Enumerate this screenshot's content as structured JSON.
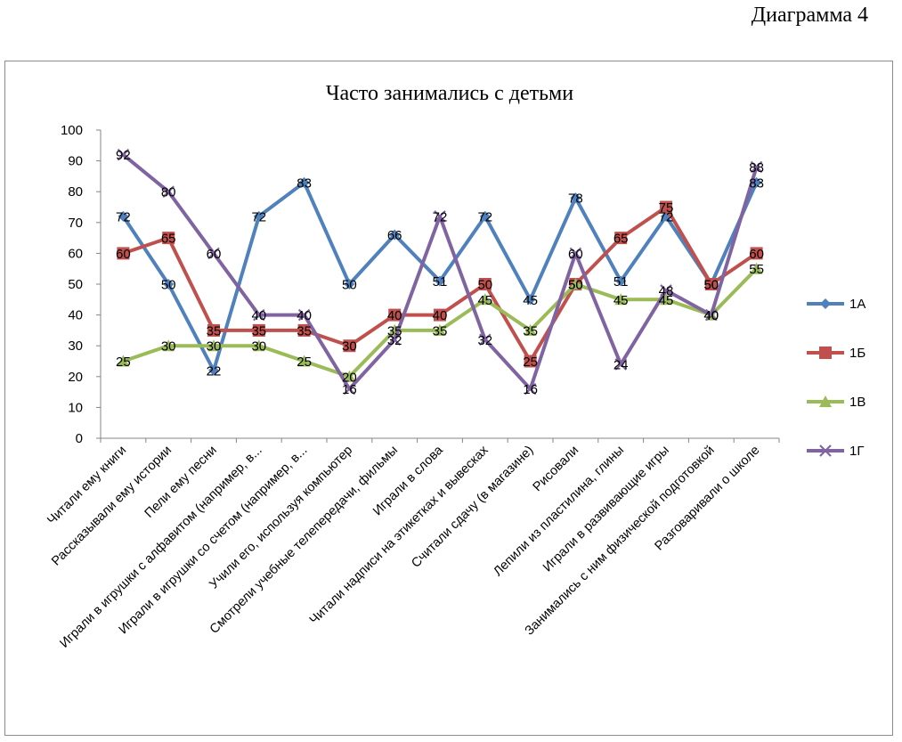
{
  "page": {
    "diagram_label": "Диаграмма 4"
  },
  "chart_data": {
    "type": "line",
    "title": "Часто занимались с детьми",
    "xlabel": "",
    "ylabel": "",
    "ylim": [
      0,
      100
    ],
    "yticks": [
      0,
      10,
      20,
      30,
      40,
      50,
      60,
      70,
      80,
      90,
      100
    ],
    "grid": false,
    "legend_position": "right",
    "categories": [
      "Читали ему книги",
      "Рассказывали ему истории",
      "Пели ему песни",
      "Играли в игрушки с алфавитом (например, в...",
      "Играли в игрушки со счетом (например, в...",
      "Учили его, используя компьютер",
      "Смотрели учебные телепередачи, фильмы",
      "Играли в слова",
      "Читали надписи на этикетках и вывесках",
      "Считали сдачу (в магазине)",
      "Рисовали",
      "Лепили из пластилина, глины",
      "Играли в развивающие игры",
      "Занимались с ним физической подготовкой",
      "Разговаривали о школе"
    ],
    "series": [
      {
        "name": "1А",
        "color": "#4f81bd",
        "marker": "diamond",
        "values": [
          72,
          50,
          22,
          72,
          83,
          50,
          66,
          51,
          72,
          45,
          78,
          51,
          72,
          50,
          83
        ]
      },
      {
        "name": "1Б",
        "color": "#c0504d",
        "marker": "square",
        "values": [
          60,
          65,
          35,
          35,
          35,
          30,
          40,
          40,
          50,
          25,
          50,
          65,
          75,
          50,
          60
        ]
      },
      {
        "name": "1В",
        "color": "#9bbb59",
        "marker": "triangle",
        "values": [
          25,
          30,
          30,
          30,
          25,
          20,
          35,
          35,
          45,
          35,
          50,
          45,
          45,
          40,
          55
        ]
      },
      {
        "name": "1Г",
        "color": "#8064a2",
        "marker": "x",
        "values": [
          92,
          80,
          60,
          40,
          40,
          16,
          32,
          72,
          32,
          16,
          60,
          24,
          48,
          40,
          88
        ]
      }
    ]
  }
}
